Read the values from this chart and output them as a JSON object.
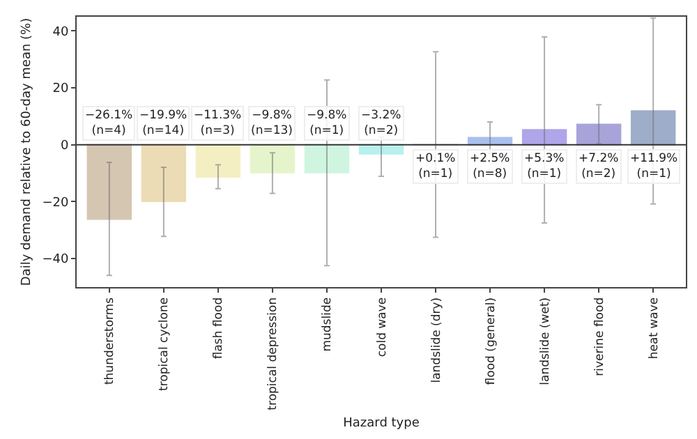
{
  "chart_data": {
    "type": "bar",
    "xlabel": "Hazard type",
    "ylabel": "Daily demand relative to 60-day mean (%)",
    "categories": [
      "thunderstorms",
      "tropical cyclone",
      "flash flood",
      "tropical depression",
      "mudslide",
      "cold wave",
      "landslide (dry)",
      "flood (general)",
      "landslide (wet)",
      "riverine flood",
      "heat wave"
    ],
    "values": [
      -26.1,
      -19.9,
      -11.3,
      -9.8,
      -9.8,
      -3.2,
      0.1,
      2.5,
      5.3,
      7.2,
      11.9
    ],
    "colors": [
      "#d5c6b2",
      "#ecdcb6",
      "#f4efc3",
      "#e6f4cc",
      "#cff5e0",
      "#b8f0ee",
      "#b8dcf2",
      "#a9c0ef",
      "#aea6e8",
      "#a8a3d8",
      "#9eadc9"
    ],
    "errors": [
      [
        -45.9,
        -6.2
      ],
      [
        -32.2,
        -7.9
      ],
      [
        -15.4,
        -7.0
      ],
      [
        -17.1,
        -2.8
      ],
      [
        -42.5,
        22.8
      ],
      [
        -11.1,
        2.7
      ],
      [
        -32.5,
        32.7
      ],
      [
        -3,
        8.0
      ],
      [
        -27.5,
        37.9
      ],
      [
        0.3,
        14.1
      ],
      [
        -20.8,
        44.6
      ]
    ],
    "value_labels": [
      "−26.1%\n(n=4)",
      "−19.9%\n(n=14)",
      "−11.3%\n(n=3)",
      "−9.8%\n(n=13)",
      "−9.8%\n(n=1)",
      "−3.2%\n(n=2)",
      "+0.1%\n(n=1)",
      "+2.5%\n(n=8)",
      "+5.3%\n(n=1)",
      "+7.2%\n(n=2)",
      "+11.9%\n(n=1)"
    ],
    "ylim": [
      -50,
      45
    ],
    "yticks": [
      -40,
      -20,
      0,
      20,
      40
    ],
    "ref_lines": [
      {
        "axis": "y",
        "value": 0,
        "color": "#333333"
      }
    ],
    "grid": false
  }
}
